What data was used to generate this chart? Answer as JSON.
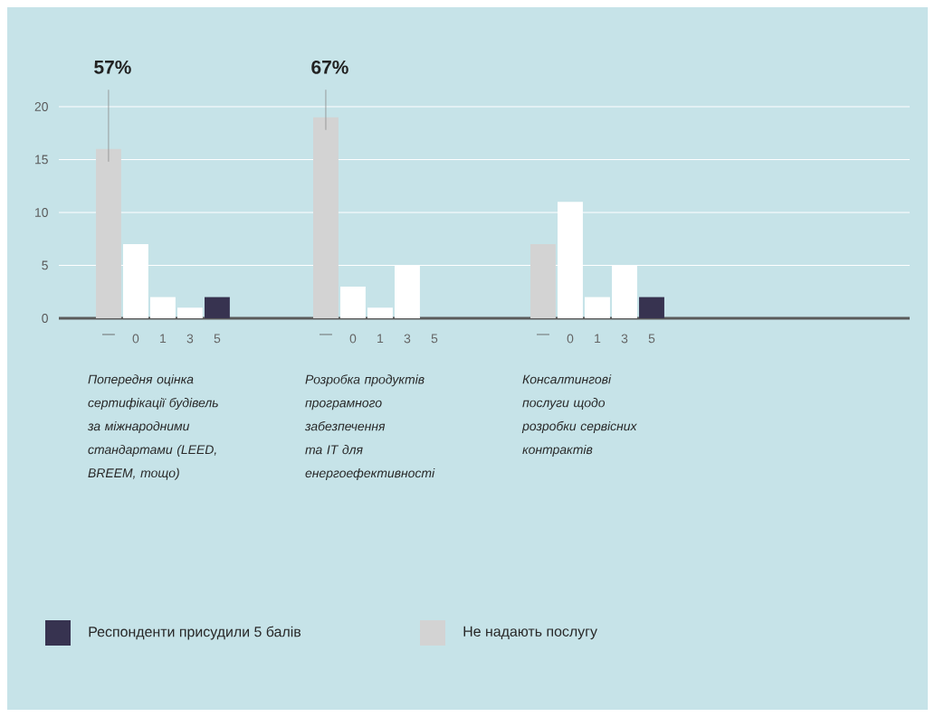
{
  "chart_data": {
    "type": "bar",
    "categories": [
      "—",
      "0",
      "1",
      "3",
      "5",
      null,
      null,
      null,
      "—",
      "0",
      "1",
      "3",
      "5",
      null,
      null,
      null,
      "—",
      "0",
      "1",
      "3",
      "5"
    ],
    "series": [
      {
        "name": "Респонденти присудили 5 балів",
        "color": "#373350",
        "values": [
          null,
          null,
          null,
          null,
          2,
          null,
          null,
          null,
          null,
          null,
          null,
          null,
          0,
          null,
          null,
          null,
          null,
          null,
          null,
          null,
          2
        ]
      },
      {
        "name": "Не надають послугу",
        "color": "#d3d3d3",
        "values": [
          16,
          null,
          null,
          null,
          null,
          null,
          null,
          null,
          19,
          null,
          null,
          null,
          null,
          null,
          null,
          null,
          7,
          null,
          null,
          null,
          null
        ]
      },
      {
        "color": "#ffffff",
        "values": [
          null,
          7,
          2,
          1,
          null,
          null,
          null,
          null,
          null,
          3,
          1,
          5,
          null,
          null,
          null,
          null,
          null,
          11,
          2,
          5,
          null
        ]
      }
    ],
    "ylim": [
      0,
      20
    ],
    "yticks": [
      0,
      5,
      10,
      15,
      20
    ],
    "grid": "y",
    "legend": "bottom left",
    "annotations": [
      "57%",
      "67%",
      "Попередня оцінка сертифікації будівель за міжнародними стандартами (LEED, BREEM, тощо)",
      "Розробка продуктів програмного забезпечення та IT для енергоефективності",
      "Консалтингові послуги щодо розробки сервісних контрактів"
    ]
  }
}
